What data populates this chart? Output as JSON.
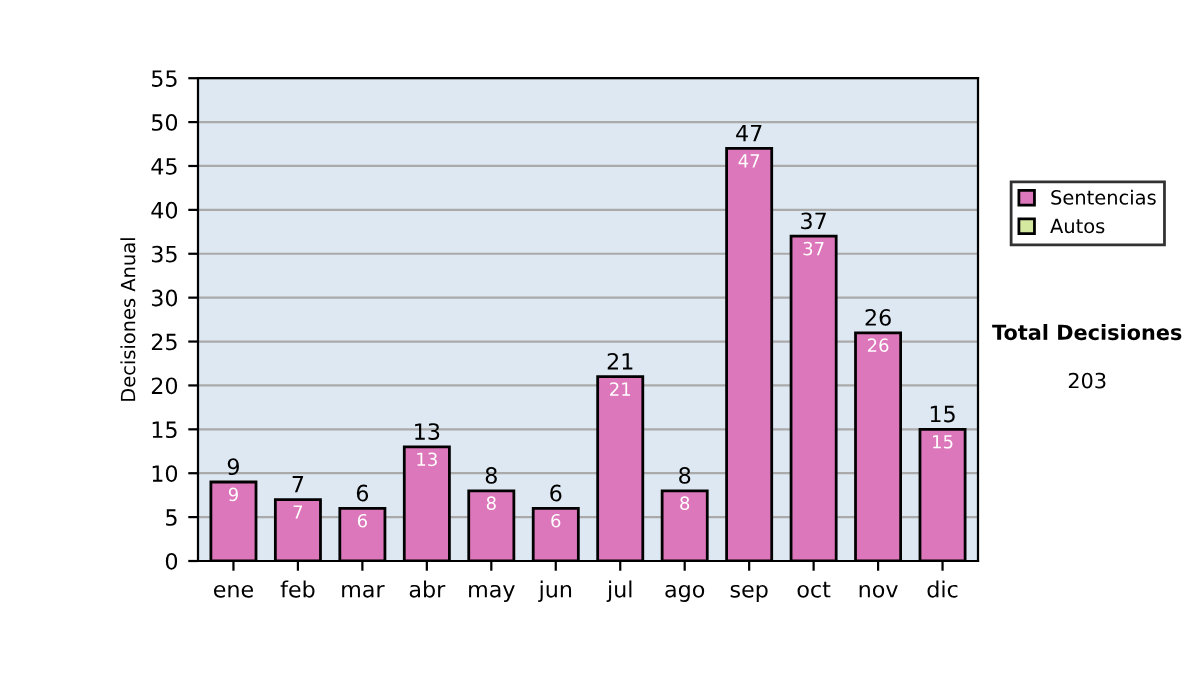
{
  "chart_data": {
    "type": "bar",
    "stacked": true,
    "ylabel": "Decisiones Anual",
    "categories": [
      "ene",
      "feb",
      "mar",
      "abr",
      "may",
      "jun",
      "jul",
      "ago",
      "sep",
      "oct",
      "nov",
      "dic"
    ],
    "series": [
      {
        "name": "Sentencias",
        "color": "#dd77bb",
        "values": [
          9,
          7,
          6,
          13,
          8,
          6,
          21,
          8,
          47,
          37,
          26,
          15
        ],
        "value_labels": [
          "9",
          "7",
          "6",
          "13",
          "8",
          "6",
          "21",
          "8",
          "47",
          "37",
          "26",
          "15"
        ]
      },
      {
        "name": "Autos",
        "color": "#d4e8a0",
        "values": [
          0,
          0,
          0,
          0,
          0,
          0,
          0,
          0,
          0,
          0,
          0,
          0
        ]
      }
    ],
    "totals": [
      "9",
      "7",
      "6",
      "13",
      "8",
      "6",
      "21",
      "8",
      "47",
      "37",
      "26",
      "15"
    ],
    "ylim": [
      0,
      55
    ],
    "yticks": [
      0,
      5,
      10,
      15,
      20,
      25,
      30,
      35,
      40,
      45,
      50,
      55
    ],
    "grid": "y",
    "legend": "right",
    "annotations": [
      "Total Decisiones",
      "203"
    ]
  }
}
